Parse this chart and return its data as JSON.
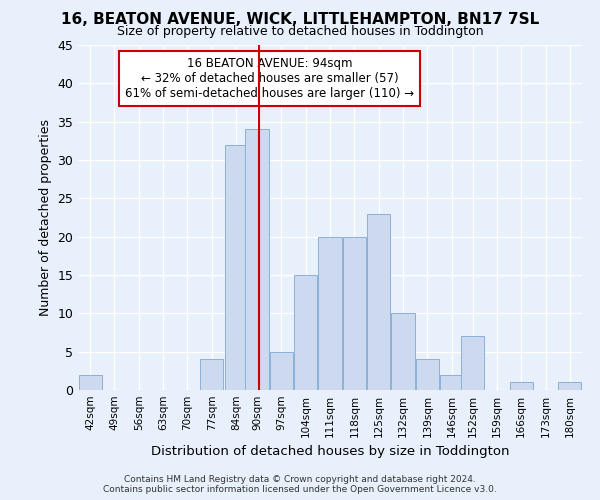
{
  "title": "16, BEATON AVENUE, WICK, LITTLEHAMPTON, BN17 7SL",
  "subtitle": "Size of property relative to detached houses in Toddington",
  "xlabel": "Distribution of detached houses by size in Toddington",
  "ylabel": "Number of detached properties",
  "bins": [
    42,
    49,
    56,
    63,
    70,
    77,
    84,
    90,
    97,
    104,
    111,
    118,
    125,
    132,
    139,
    146,
    152,
    159,
    166,
    173,
    180
  ],
  "bar_heights": [
    2,
    0,
    0,
    0,
    0,
    4,
    32,
    34,
    5,
    15,
    20,
    20,
    23,
    10,
    4,
    2,
    7,
    0,
    1,
    0,
    1
  ],
  "bar_color": "#ccd9ee",
  "bar_edge_color": "#8bb0d8",
  "property_value": 94,
  "property_line_color": "#cc0000",
  "annotation_text": "16 BEATON AVENUE: 94sqm\n← 32% of detached houses are smaller (57)\n61% of semi-detached houses are larger (110) →",
  "annotation_box_color": "#ffffff",
  "annotation_box_edge": "#cc0000",
  "ylim": [
    0,
    45
  ],
  "yticks": [
    0,
    5,
    10,
    15,
    20,
    25,
    30,
    35,
    40,
    45
  ],
  "bg_color": "#dce8f8",
  "plot_bg_color": "#e8f0fb",
  "grid_color": "#ffffff",
  "footer1": "Contains HM Land Registry data © Crown copyright and database right 2024.",
  "footer2": "Contains public sector information licensed under the Open Government Licence v3.0.",
  "fig_facecolor": "#e8f0fb"
}
